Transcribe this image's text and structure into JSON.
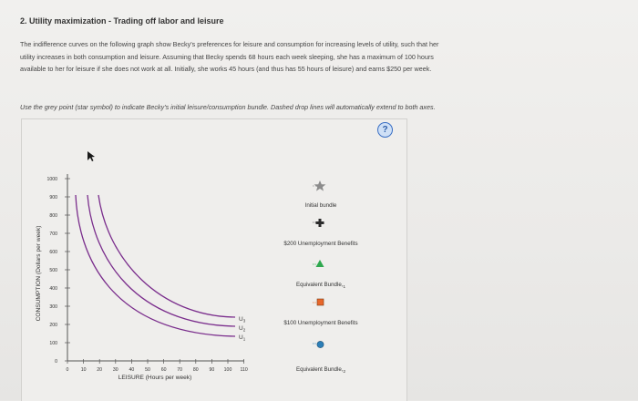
{
  "header": {
    "title": "2. Utility maximization - Trading off labor and leisure"
  },
  "intro_lines": [
    "The indifference curves on the following graph show Becky's preferences for leisure and consumption for increasing levels of utility, such that her",
    "utility increases in both consumption and leisure. Assuming that Becky spends 68 hours each week sleeping, she has a maximum of 100 hours",
    "available to her for leisure if she does not work at all. Initially, she works 45 hours (and thus has 55 hours of leisure) and earns $250 per week."
  ],
  "instruction": "Use the grey point (star symbol) to indicate Becky's initial leisure/consumption bundle. Dashed drop lines will automatically extend to both axes.",
  "help_label": "?",
  "graph": {
    "y_axis_label": "CONSUMPTION (Dollars per week)",
    "x_axis_label": "LEISURE (Hours per week)",
    "y_ticks": [
      "0",
      "100",
      "200",
      "300",
      "400",
      "500",
      "600",
      "700",
      "800",
      "900",
      "1000"
    ],
    "x_ticks": [
      "0",
      "10",
      "20",
      "30",
      "40",
      "50",
      "60",
      "70",
      "80",
      "90",
      "100",
      "110"
    ],
    "curve_labels": [
      "U3",
      "U2",
      "U1"
    ]
  },
  "legend": {
    "items": [
      {
        "label": "Initial bundle",
        "icon": "star-icon",
        "color": "#8c8c8c"
      },
      {
        "label": "$200 Unemployment Benefits",
        "icon": "plus-icon",
        "color": "#2b2b2b"
      },
      {
        "label": "Equivalent Bundle,",
        "icon": "triangle-icon",
        "color": "#2fa84f"
      },
      {
        "label": "$100 Unemployment Benefits",
        "icon": "square-icon",
        "color": "#e8672a"
      },
      {
        "label": "Equivalent Bundle,",
        "icon": "circle-icon",
        "color": "#2c7fb8"
      }
    ]
  },
  "colors": {
    "curve": "#7a2d8c",
    "axis": "#555555",
    "help": "#3a6fc4"
  }
}
